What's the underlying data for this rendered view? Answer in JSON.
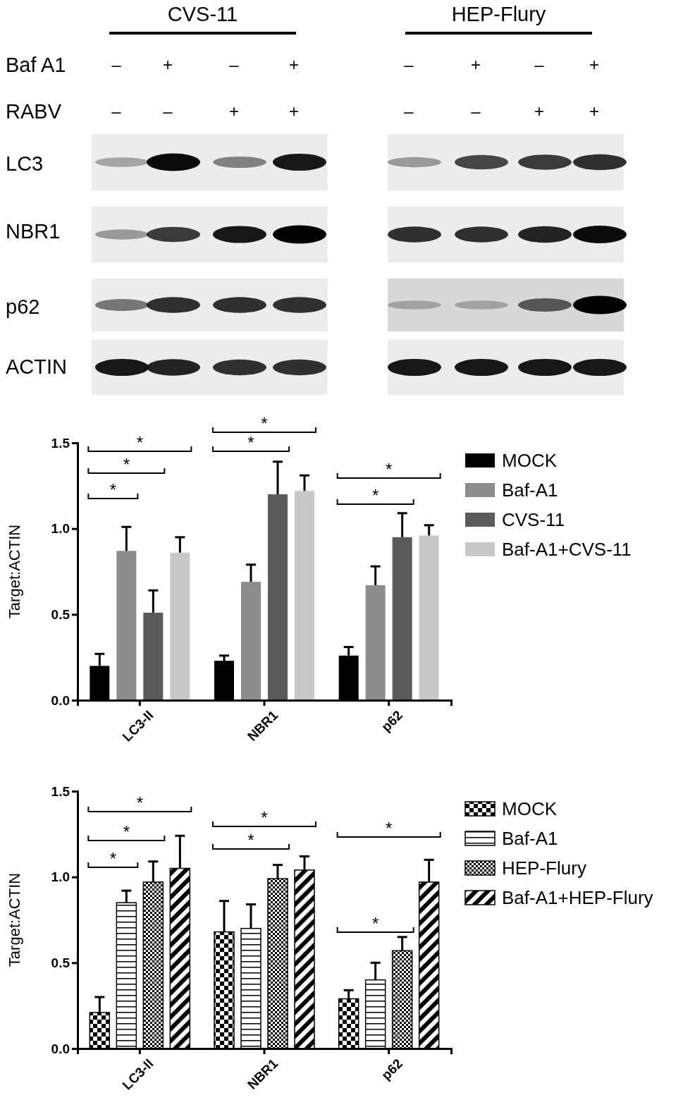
{
  "chart_data": [
    {
      "type": "other",
      "annotations": [
        "CVS-11",
        "HEP-Flury",
        "Baf A1",
        "RABV",
        "LC3",
        "NBR1",
        "p62",
        "ACTIN",
        "–",
        "+",
        "–",
        "+",
        "–",
        "+",
        "–",
        "+",
        "–",
        "–",
        "+",
        "+",
        "–",
        "–",
        "+",
        "+"
      ]
    },
    {
      "type": "bar",
      "ylabel": "Target:ACTIN",
      "categories": [
        "LC3-II",
        "NBR1",
        "p62"
      ],
      "series": [
        {
          "name": "MOCK",
          "color": "#000000",
          "values": [
            0.2,
            0.23,
            0.26
          ],
          "errors": [
            [
              0.2,
              0.27
            ],
            [
              0.23,
              0.26
            ],
            [
              0.26,
              0.31
            ]
          ]
        },
        {
          "name": "Baf-A1",
          "color": "#8c8c8c",
          "values": [
            0.87,
            0.69,
            0.67
          ],
          "errors": [
            [
              0.87,
              1.01
            ],
            [
              0.69,
              0.79
            ],
            [
              0.67,
              0.78
            ]
          ]
        },
        {
          "name": "CVS-11",
          "color": "#5a5a5a",
          "values": [
            0.51,
            1.2,
            0.95
          ],
          "errors": [
            [
              0.51,
              0.64
            ],
            [
              1.2,
              1.39
            ],
            [
              0.95,
              1.09
            ]
          ]
        },
        {
          "name": "Baf-A1+CVS-11",
          "color": "#c8c8c8",
          "values": [
            0.86,
            1.22,
            0.96
          ],
          "errors": [
            [
              0.86,
              0.95
            ],
            [
              1.22,
              1.31
            ],
            [
              0.96,
              1.02
            ]
          ]
        }
      ],
      "ylim": [
        0,
        1.5
      ],
      "yticks": [
        {
          "value": 0,
          "label": "0.0"
        },
        {
          "value": 0.5,
          "label": "0.5"
        },
        {
          "value": 1,
          "label": "1.0"
        },
        {
          "value": 1.5,
          "label": "1.5"
        }
      ],
      "legend": "right",
      "annotations": [
        "*",
        "*",
        "*",
        "*",
        "*",
        "*",
        "*"
      ]
    },
    {
      "type": "bar",
      "ylabel": "Target:ACTIN",
      "categories": [
        "LC3-II",
        "NBR1",
        "p62"
      ],
      "series": [
        {
          "name": "MOCK",
          "color": "#000000",
          "values": [
            0.21,
            0.68,
            0.29
          ],
          "errors": [
            [
              0.21,
              0.3
            ],
            [
              0.68,
              0.86
            ],
            [
              0.29,
              0.34
            ]
          ]
        },
        {
          "name": "Baf-A1",
          "color": "#000000",
          "values": [
            0.85,
            0.7,
            0.4
          ],
          "errors": [
            [
              0.85,
              0.92
            ],
            [
              0.7,
              0.84
            ],
            [
              0.4,
              0.5
            ]
          ]
        },
        {
          "name": "HEP-Flury",
          "color": "#000000",
          "values": [
            0.97,
            0.99,
            0.57
          ],
          "errors": [
            [
              0.97,
              1.09
            ],
            [
              0.99,
              1.07
            ],
            [
              0.57,
              0.65
            ]
          ]
        },
        {
          "name": "Baf-A1+HEP-Flury",
          "color": "#000000",
          "values": [
            1.05,
            1.04,
            0.97
          ],
          "errors": [
            [
              1.05,
              1.24
            ],
            [
              1.04,
              1.12
            ],
            [
              0.97,
              1.1
            ]
          ]
        }
      ],
      "ylim": [
        0,
        1.5
      ],
      "yticks": [
        {
          "value": 0,
          "label": "0.0"
        },
        {
          "value": 0.5,
          "label": "0.5"
        },
        {
          "value": 1,
          "label": "1.0"
        },
        {
          "value": 1.5,
          "label": "1.5"
        }
      ],
      "legend": "right",
      "annotations": [
        "*",
        "*",
        "*",
        "*",
        "*",
        "*",
        "*"
      ]
    }
  ]
}
